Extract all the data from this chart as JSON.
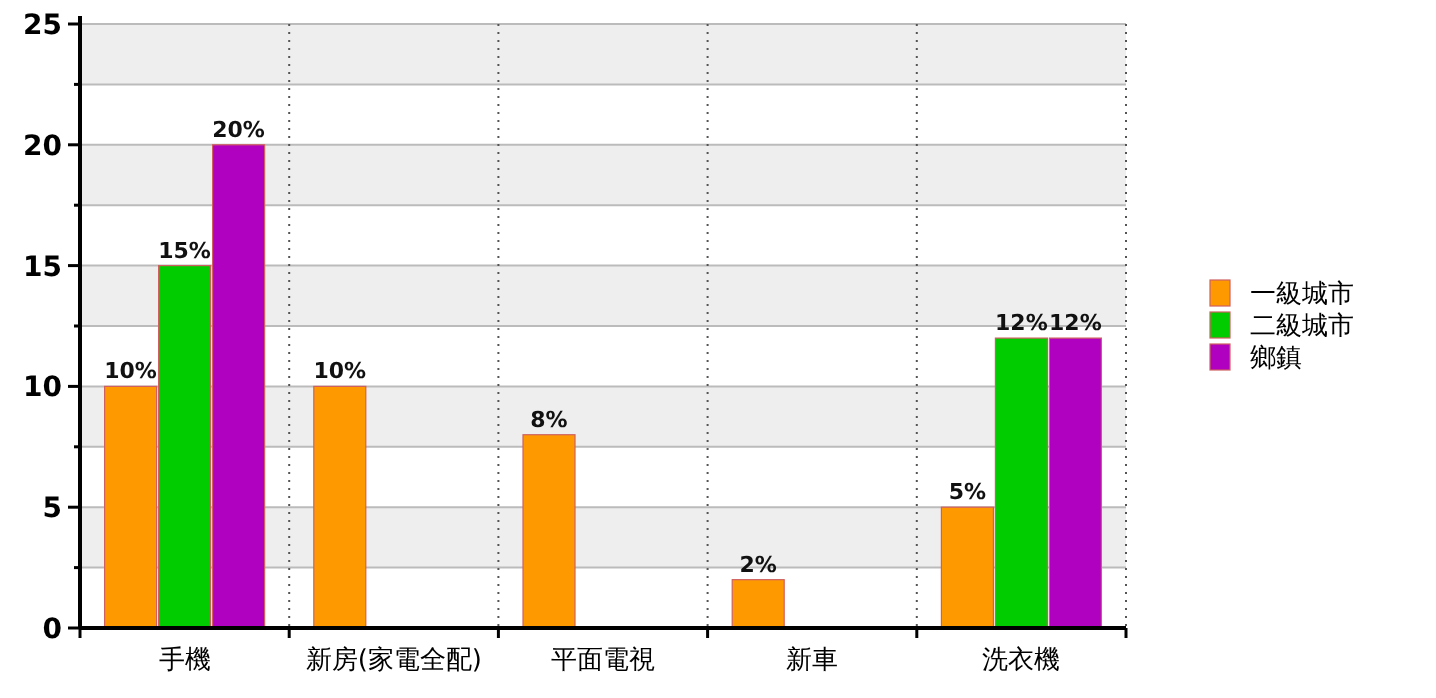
{
  "chart_data": {
    "type": "bar",
    "categories": [
      "手機",
      "新房(家電全配)",
      "平面電視",
      "新車",
      "洗衣機"
    ],
    "series": [
      {
        "name": "一級城市",
        "color": "#ff9900",
        "values": [
          10,
          10,
          8,
          2,
          5
        ],
        "value_labels": [
          "10%",
          "10%",
          "8%",
          "2%",
          "5%"
        ]
      },
      {
        "name": "二級城市",
        "color": "#00cc00",
        "values": [
          15,
          null,
          null,
          null,
          12
        ],
        "value_labels": [
          "15%",
          null,
          null,
          null,
          "12%"
        ]
      },
      {
        "name": "鄉鎮",
        "color": "#b000c0",
        "values": [
          20,
          null,
          null,
          null,
          12
        ],
        "value_labels": [
          "20%",
          null,
          null,
          null,
          "12%"
        ]
      }
    ],
    "ylim": [
      0,
      25
    ],
    "yticks": [
      0,
      {
        "value": 2.5,
        "label": null
      },
      5,
      {
        "value": 7.5,
        "label": null
      },
      10,
      {
        "value": 12.5,
        "label": null
      },
      15,
      {
        "value": 17.5,
        "label": null
      },
      20,
      {
        "value": 22.5,
        "label": null
      },
      25
    ],
    "grid": true,
    "legend": "right"
  }
}
